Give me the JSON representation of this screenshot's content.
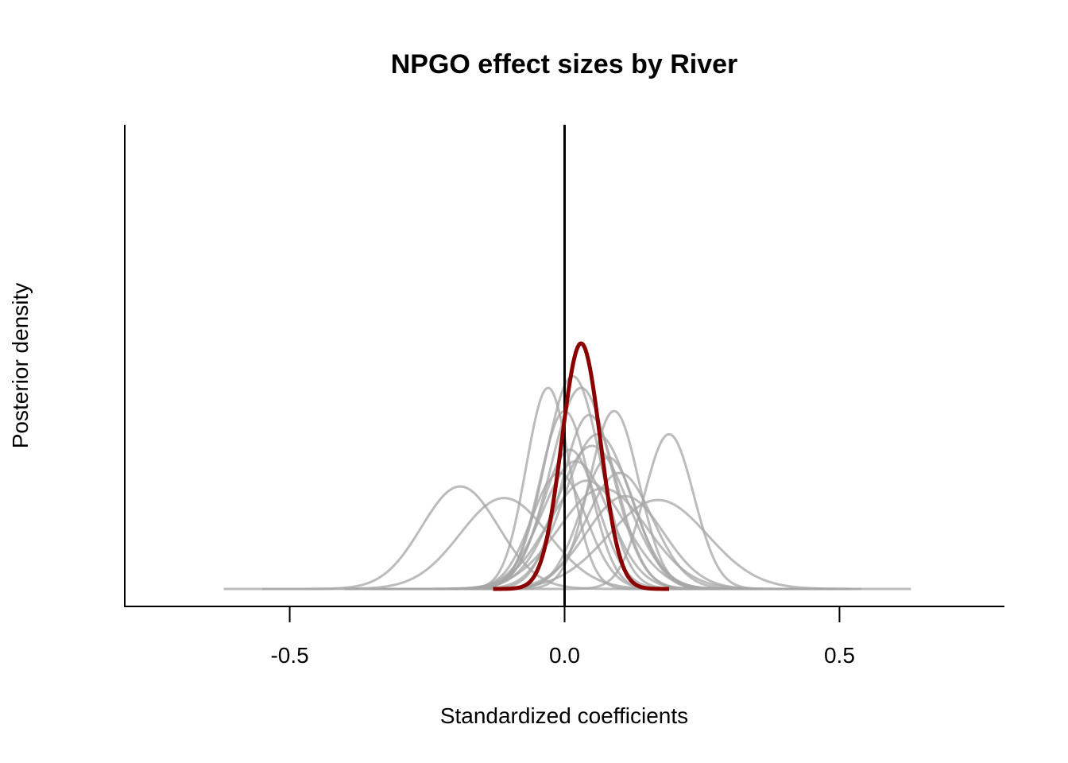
{
  "chart_data": {
    "type": "line",
    "title": "NPGO effect sizes by River",
    "xlabel": "Standardized coefficients",
    "ylabel": "Posterior density",
    "xlim": [
      -0.8,
      0.8
    ],
    "ylim": [
      0,
      12
    ],
    "x_ticks": [
      -0.5,
      0.0,
      0.5
    ],
    "x_tick_labels": [
      "-0.5",
      "0.0",
      "0.5"
    ],
    "y_ticks_shown": false,
    "grid": false,
    "reference_line_x": 0.0,
    "colors": {
      "river_curves": "#a6a6a6",
      "overall_curve": "#8b0000",
      "reference_line": "#000000"
    },
    "rivers": [
      {
        "mean": -0.19,
        "sd": 0.07,
        "peak": 2.65,
        "range": [
          -0.62,
          0.24
        ]
      },
      {
        "mean": -0.11,
        "sd": 0.08,
        "peak": 2.35,
        "range": [
          -0.55,
          0.34
        ]
      },
      {
        "mean": -0.03,
        "sd": 0.04,
        "peak": 5.2,
        "range": [
          -0.3,
          0.24
        ]
      },
      {
        "mean": -0.01,
        "sd": 0.05,
        "peak": 3.0,
        "range": [
          -0.33,
          0.3
        ]
      },
      {
        "mean": 0.0,
        "sd": 0.045,
        "peak": 4.6,
        "range": [
          -0.3,
          0.3
        ]
      },
      {
        "mean": 0.01,
        "sd": 0.05,
        "peak": 3.6,
        "range": [
          -0.3,
          0.32
        ]
      },
      {
        "mean": 0.015,
        "sd": 0.05,
        "peak": 5.5,
        "range": [
          -0.3,
          0.33
        ]
      },
      {
        "mean": 0.02,
        "sd": 0.06,
        "peak": 3.3,
        "range": [
          -0.35,
          0.38
        ]
      },
      {
        "mean": 0.03,
        "sd": 0.055,
        "peak": 5.2,
        "range": [
          -0.3,
          0.36
        ]
      },
      {
        "mean": 0.04,
        "sd": 0.07,
        "peak": 2.8,
        "range": [
          -0.4,
          0.46
        ]
      },
      {
        "mean": 0.045,
        "sd": 0.05,
        "peak": 4.5,
        "range": [
          -0.3,
          0.36
        ]
      },
      {
        "mean": 0.05,
        "sd": 0.065,
        "peak": 3.7,
        "range": [
          -0.35,
          0.44
        ]
      },
      {
        "mean": 0.06,
        "sd": 0.06,
        "peak": 4.0,
        "range": [
          -0.3,
          0.44
        ]
      },
      {
        "mean": 0.07,
        "sd": 0.08,
        "peak": 2.6,
        "range": [
          -0.4,
          0.52
        ]
      },
      {
        "mean": 0.08,
        "sd": 0.05,
        "peak": 3.4,
        "range": [
          -0.25,
          0.42
        ]
      },
      {
        "mean": 0.09,
        "sd": 0.045,
        "peak": 4.6,
        "range": [
          -0.2,
          0.4
        ]
      },
      {
        "mean": 0.1,
        "sd": 0.06,
        "peak": 3.0,
        "range": [
          -0.25,
          0.46
        ]
      },
      {
        "mean": 0.11,
        "sd": 0.07,
        "peak": 2.4,
        "range": [
          -0.3,
          0.54
        ]
      },
      {
        "mean": 0.17,
        "sd": 0.09,
        "peak": 2.3,
        "range": [
          -0.3,
          0.63
        ]
      },
      {
        "mean": 0.19,
        "sd": 0.045,
        "peak": 4.0,
        "range": [
          -0.1,
          0.5
        ]
      }
    ],
    "overall": {
      "mean": 0.03,
      "sd": 0.035,
      "peak": 6.35,
      "range": [
        -0.13,
        0.19
      ]
    }
  }
}
